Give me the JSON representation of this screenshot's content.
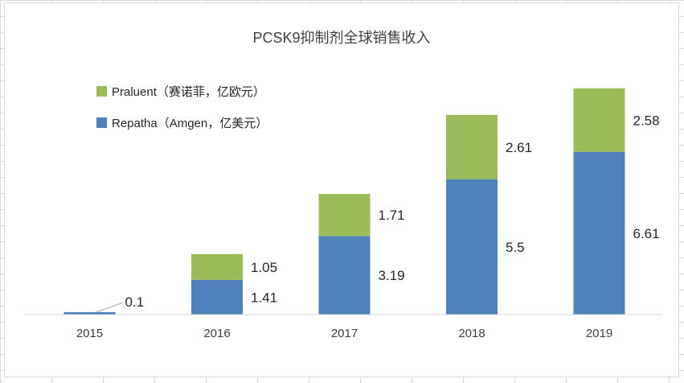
{
  "chart_data": {
    "type": "bar",
    "stacked": true,
    "title": "PCSK9抑制剂全球销售收入",
    "categories": [
      "2015",
      "2016",
      "2017",
      "2018",
      "2019"
    ],
    "series": [
      {
        "name": "Repatha（Amgen，亿美元）",
        "color": "#4f81bd",
        "values": [
          0.1,
          1.41,
          3.19,
          5.5,
          6.61
        ]
      },
      {
        "name": "Praluent（赛诺菲，亿欧元）",
        "color": "#9bbb59",
        "values": [
          null,
          1.05,
          1.71,
          2.61,
          2.58
        ]
      }
    ],
    "data_labels": [
      [
        "0.1",
        "1.41",
        "3.19",
        "5.5",
        "6.61"
      ],
      [
        "",
        "1.05",
        "1.71",
        "2.61",
        "2.58"
      ]
    ],
    "legend": {
      "position": "top-left",
      "order": [
        1,
        0
      ]
    },
    "ylim": [
      0,
      9.5
    ],
    "grid": false
  }
}
